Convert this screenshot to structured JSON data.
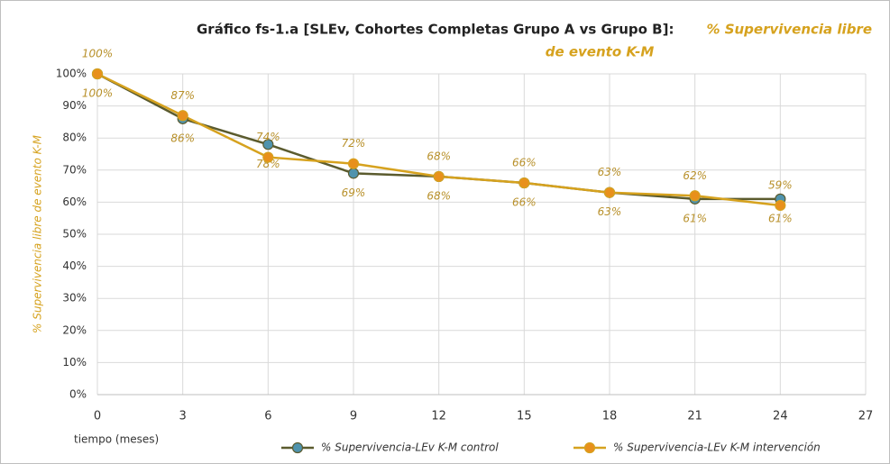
{
  "chart_data": {
    "type": "line",
    "title": "Gráfico fs-1.a [SLEv, Cohortes Completas Grupo A vs Grupo B]:",
    "title_highlight": [
      "% Supervivencia libre",
      "de evento K-M"
    ],
    "x_label": "tiempo (meses)",
    "y_label": "% Supervivencia libre de evento K-M",
    "x": [
      0,
      3,
      6,
      9,
      12,
      15,
      18,
      21,
      24
    ],
    "xlim": [
      0,
      27
    ],
    "xticks": [
      0,
      3,
      6,
      9,
      12,
      15,
      18,
      21,
      24,
      27
    ],
    "ylim": [
      0,
      100
    ],
    "yticks": [
      {
        "value": 0,
        "label": "0%"
      },
      {
        "value": 10,
        "label": "10%"
      },
      {
        "value": 20,
        "label": "20%"
      },
      {
        "value": 30,
        "label": "30%"
      },
      {
        "value": 40,
        "label": "40%"
      },
      {
        "value": 50,
        "label": "50%"
      },
      {
        "value": 60,
        "label": "60%"
      },
      {
        "value": 70,
        "label": "70%"
      },
      {
        "value": 80,
        "label": "80%"
      },
      {
        "value": 90,
        "label": "90%"
      },
      {
        "value": 100,
        "label": "100%"
      }
    ],
    "grid": true,
    "legend": "bottom",
    "series": [
      {
        "name": "% Supervivencia-LEv K-M control",
        "color": "#5b5b2e",
        "marker_color": "#4f93ad",
        "values": [
          100,
          86,
          78,
          69,
          68,
          66,
          63,
          61,
          61
        ],
        "value_labels": [
          "100%",
          "86%",
          "78%",
          "69%",
          "68%",
          "66%",
          "63%",
          "61%",
          "61%"
        ]
      },
      {
        "name": "% Supervivencia-LEv K-M intervención",
        "color": "#d6a21e",
        "marker_color": "#e8901c",
        "values": [
          100,
          87,
          74,
          72,
          68,
          66,
          63,
          62,
          59
        ],
        "value_labels": [
          "100%",
          "87%",
          "74%",
          "72%",
          "68%",
          "66%",
          "63%",
          "62%",
          "59%"
        ]
      }
    ]
  }
}
